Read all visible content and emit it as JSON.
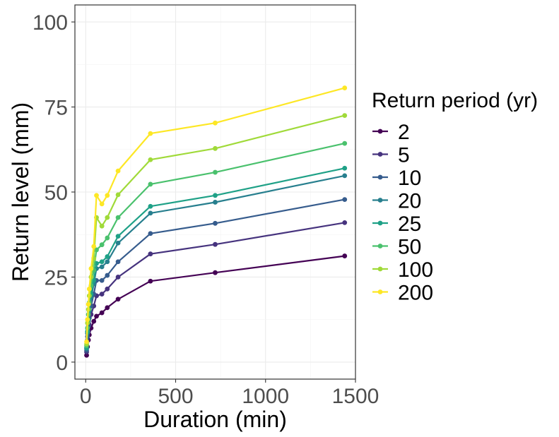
{
  "chart_data": {
    "type": "line",
    "title": "",
    "xlabel": "Duration (min)",
    "ylabel": "Return level (mm)",
    "xlim": [
      -60,
      1500
    ],
    "ylim": [
      -5,
      105
    ],
    "xticks": [
      0,
      500,
      1000,
      1500
    ],
    "yticks": [
      0,
      25,
      50,
      75,
      100
    ],
    "grid": true,
    "legend": {
      "title": "Return period (yr)",
      "position": "right"
    },
    "x": [
      5,
      10,
      15,
      20,
      30,
      45,
      60,
      90,
      120,
      180,
      360,
      720,
      1440
    ],
    "series": [
      {
        "name": "2",
        "color": "#440154",
        "values": [
          2.0,
          4.5,
          6.5,
          8.0,
          10.0,
          12.0,
          13.5,
          14.5,
          16.0,
          18.5,
          23.8,
          26.3,
          31.2
        ]
      },
      {
        "name": "5",
        "color": "#46337e",
        "values": [
          3.0,
          6.5,
          9.0,
          11.0,
          14.0,
          16.5,
          19.5,
          20.0,
          21.5,
          25.0,
          31.8,
          34.6,
          41.0
        ]
      },
      {
        "name": "10",
        "color": "#365c8d",
        "values": [
          3.5,
          7.5,
          10.5,
          13.0,
          16.5,
          20.0,
          24.0,
          24.0,
          25.5,
          29.5,
          37.8,
          40.8,
          47.8
        ]
      },
      {
        "name": "20",
        "color": "#277f8e",
        "values": [
          4.0,
          8.5,
          12.0,
          15.0,
          19.0,
          23.0,
          27.5,
          28.0,
          29.5,
          35.0,
          43.8,
          47.0,
          54.8
        ]
      },
      {
        "name": "25",
        "color": "#1fa187",
        "values": [
          4.2,
          9.0,
          12.5,
          15.5,
          20.0,
          24.0,
          29.0,
          29.5,
          31.0,
          37.0,
          45.8,
          49.0,
          57.0
        ]
      },
      {
        "name": "50",
        "color": "#4ac16d",
        "values": [
          4.8,
          10.0,
          14.0,
          17.5,
          22.5,
          27.0,
          33.0,
          34.5,
          36.5,
          42.5,
          52.3,
          55.8,
          64.3
        ]
      },
      {
        "name": "100",
        "color": "#a0da39",
        "values": [
          5.3,
          11.5,
          15.5,
          19.5,
          25.0,
          30.5,
          42.5,
          40.0,
          42.5,
          49.2,
          59.5,
          62.8,
          72.5
        ]
      },
      {
        "name": "200",
        "color": "#fde725",
        "values": [
          6.0,
          12.5,
          17.0,
          21.5,
          27.5,
          34.0,
          49.0,
          46.5,
          49.0,
          56.2,
          67.2,
          70.3,
          80.6
        ]
      }
    ]
  }
}
